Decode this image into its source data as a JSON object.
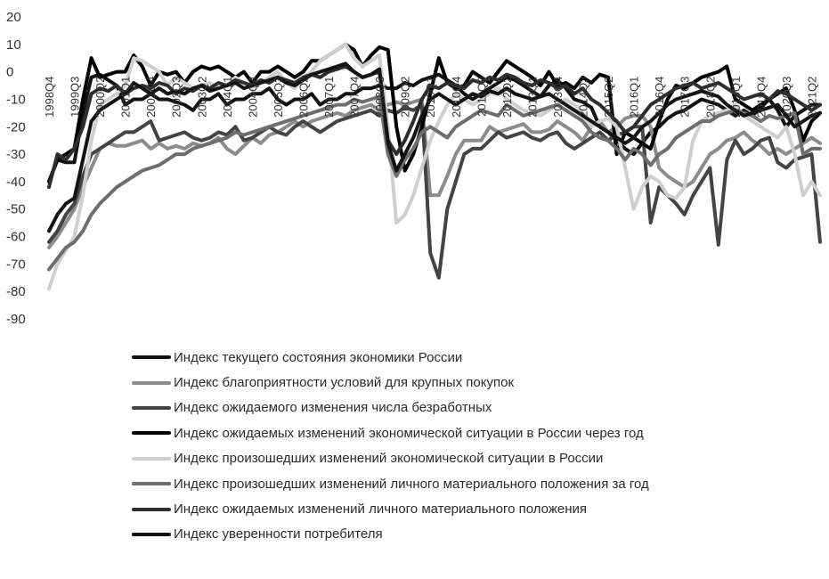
{
  "chart_data": {
    "type": "line",
    "ylim": [
      -90,
      20
    ],
    "yticks": [
      20,
      10,
      0,
      -10,
      -20,
      -30,
      -40,
      -50,
      -60,
      -70,
      -80,
      -90
    ],
    "x_start": "1998Q4",
    "x_end": "2021Q2",
    "x_tick_labels": [
      "1998Q4",
      "1999Q3",
      "2000Q2",
      "2001Q1",
      "2001Q4",
      "2002Q3",
      "2003Q2",
      "2004Q1",
      "2004Q4",
      "2005Q3",
      "2006Q2",
      "2007Q1",
      "2007Q4",
      "2008Q3",
      "2009Q2",
      "2010Q1",
      "2010Q4",
      "2011Q3",
      "2012Q2",
      "2013Q1",
      "2013Q4",
      "2014Q3",
      "2015Q2",
      "2016Q1",
      "2016Q4",
      "2017Q3",
      "2018Q2",
      "2019Q1",
      "2019Q4",
      "2020Q3",
      "2021Q2"
    ],
    "legend_position": "bottom",
    "grid": false,
    "series": [
      {
        "name": "Индекс текущего состояния экономики России",
        "color": "#111111",
        "values": [
          -40,
          -32,
          -33,
          -33,
          -15,
          -2,
          -1,
          -3,
          -5,
          -12,
          -10,
          -10,
          -8,
          -10,
          -10,
          -11,
          -12,
          -14,
          -10,
          -10,
          -8,
          -12,
          -10,
          -10,
          -8,
          -8,
          -6,
          -10,
          -12,
          -10,
          -10,
          -8,
          -12,
          -10,
          -10,
          -8,
          -8,
          -6,
          -6,
          -5,
          -6,
          -6,
          -4,
          -5,
          -3,
          -2,
          -1,
          -3,
          -5,
          -8,
          -10,
          -8,
          -6,
          -4,
          -2,
          -3,
          -5,
          -7,
          -9,
          -5,
          -3,
          -6,
          -10,
          -11,
          -13,
          -20,
          -22,
          -25,
          -28,
          -30,
          -26,
          -22,
          -20,
          -17,
          -15,
          -14,
          -12,
          -10,
          -11,
          -12,
          -14,
          -16,
          -14,
          -16,
          -13,
          -10,
          -14,
          -20,
          -16,
          -14,
          -12,
          -12
        ]
      },
      {
        "name": "Индекс благоприятности условий для крупных покупок",
        "color": "#8c8c8c",
        "values": [
          -64,
          -60,
          -55,
          -50,
          -42,
          -35,
          -28,
          -26,
          -27,
          -27,
          -26,
          -25,
          -28,
          -26,
          -28,
          -27,
          -28,
          -26,
          -27,
          -26,
          -24,
          -28,
          -30,
          -27,
          -24,
          -26,
          -23,
          -22,
          -20,
          -18,
          -20,
          -18,
          -17,
          -16,
          -15,
          -16,
          -14,
          -13,
          -12,
          -14,
          -12,
          -11,
          -12,
          -11,
          -10,
          -45,
          -45,
          -38,
          -30,
          -25,
          -25,
          -25,
          -20,
          -22,
          -21,
          -20,
          -19,
          -22,
          -22,
          -21,
          -18,
          -20,
          -22,
          -25,
          -20,
          -18,
          -22,
          -20,
          -17,
          -16,
          -16,
          -20,
          -35,
          -38,
          -40,
          -42,
          -40,
          -35,
          -30,
          -28,
          -25,
          -24,
          -22,
          -25,
          -27,
          -30,
          -28,
          -30,
          -28,
          -26,
          -24,
          -26
        ]
      },
      {
        "name": "Индекс ожидаемого изменения числа безработных",
        "color": "#444444",
        "values": [
          -62,
          -58,
          -52,
          -48,
          -38,
          -30,
          -28,
          -26,
          -24,
          -22,
          -22,
          -20,
          -18,
          -25,
          -24,
          -23,
          -22,
          -24,
          -25,
          -24,
          -22,
          -23,
          -20,
          -25,
          -24,
          -22,
          -20,
          -22,
          -23,
          -20,
          -18,
          -20,
          -22,
          -20,
          -18,
          -17,
          -16,
          -15,
          -14,
          -16,
          -14,
          -15,
          -13,
          -14,
          -12,
          -66,
          -75,
          -50,
          -40,
          -30,
          -28,
          -28,
          -25,
          -22,
          -24,
          -23,
          -22,
          -24,
          -25,
          -23,
          -22,
          -26,
          -28,
          -26,
          -24,
          -22,
          -25,
          -23,
          -22,
          -20,
          -20,
          -55,
          -42,
          -45,
          -48,
          -52,
          -45,
          -40,
          -35,
          -63,
          -32,
          -25,
          -30,
          -28,
          -25,
          -24,
          -33,
          -35,
          -32,
          -31,
          -30,
          -62
        ]
      },
      {
        "name": "Индекс ожидаемых изменений экономической ситуации в России через год",
        "color": "#000000",
        "values": [
          -40,
          -32,
          -30,
          -28,
          -10,
          5,
          -2,
          -1,
          0,
          0,
          6,
          2,
          -5,
          0,
          -1,
          0,
          -4,
          0,
          2,
          1,
          2,
          0,
          -2,
          0,
          -4,
          0,
          0,
          2,
          0,
          -2,
          0,
          4,
          4,
          6,
          8,
          10,
          8,
          2,
          6,
          9,
          8,
          -20,
          -36,
          -30,
          -20,
          -8,
          5,
          -4,
          -6,
          -5,
          0,
          -2,
          -4,
          0,
          4,
          2,
          0,
          -2,
          -5,
          0,
          -5,
          -4,
          -6,
          -2,
          -4,
          -1,
          -2,
          -30,
          -22,
          -24,
          -26,
          -28,
          -18,
          -10,
          -5,
          -6,
          -4,
          -2,
          -1,
          0,
          2,
          -10,
          -12,
          -14,
          -12,
          -10,
          -8,
          -6,
          -14,
          -25,
          -18,
          -15
        ]
      },
      {
        "name": "Индекс произошедших изменений экономической ситуации в России",
        "color": "#cfcfcf",
        "values": [
          -79,
          -70,
          -65,
          -60,
          -45,
          -25,
          -12,
          -10,
          -8,
          -5,
          5,
          4,
          2,
          0,
          -5,
          -2,
          -4,
          -6,
          -5,
          -4,
          -6,
          -5,
          -2,
          -4,
          -6,
          -4,
          -2,
          0,
          -4,
          -6,
          -2,
          0,
          4,
          6,
          8,
          10,
          5,
          2,
          4,
          6,
          -20,
          -55,
          -52,
          -45,
          -35,
          -25,
          -18,
          -12,
          -8,
          -10,
          -12,
          -10,
          -8,
          -6,
          -10,
          -12,
          -14,
          -15,
          -16,
          -14,
          -12,
          -10,
          -12,
          -15,
          -20,
          -18,
          -17,
          -20,
          -35,
          -50,
          -42,
          -38,
          -40,
          -45,
          -46,
          -42,
          -25,
          -18,
          -16,
          -15,
          -14,
          -12,
          -16,
          -18,
          -20,
          -22,
          -24,
          -20,
          -30,
          -45,
          -40,
          -45
        ]
      },
      {
        "name": "Индекс произошедших изменений личного материального положения за год",
        "color": "#6e6e6e",
        "values": [
          -72,
          -68,
          -64,
          -62,
          -58,
          -52,
          -48,
          -45,
          -42,
          -40,
          -38,
          -36,
          -35,
          -34,
          -32,
          -30,
          -30,
          -28,
          -27,
          -26,
          -25,
          -24,
          -22,
          -23,
          -22,
          -21,
          -20,
          -19,
          -18,
          -17,
          -16,
          -15,
          -14,
          -13,
          -12,
          -12,
          -10,
          -11,
          -10,
          -9,
          -30,
          -38,
          -32,
          -28,
          -22,
          -20,
          -22,
          -24,
          -20,
          -18,
          -16,
          -14,
          -15,
          -16,
          -12,
          -14,
          -16,
          -15,
          -14,
          -13,
          -12,
          -14,
          -16,
          -18,
          -22,
          -24,
          -25,
          -28,
          -32,
          -28,
          -30,
          -34,
          -30,
          -28,
          -24,
          -22,
          -20,
          -18,
          -18,
          -16,
          -15,
          -14,
          -15,
          -16,
          -18,
          -16,
          -17,
          -16,
          -15,
          -30,
          -28,
          -28
        ]
      },
      {
        "name": "Индекс ожидаемых изменений личного материального положения",
        "color": "#2e2e2e",
        "values": [
          -42,
          -30,
          -32,
          -28,
          -20,
          -8,
          -6,
          -7,
          -5,
          -8,
          -6,
          -5,
          -6,
          -4,
          -5,
          -8,
          -6,
          -7,
          -5,
          -6,
          -4,
          -5,
          -3,
          -4,
          -5,
          -3,
          -4,
          -2,
          -3,
          -4,
          -2,
          -1,
          -2,
          0,
          1,
          2,
          0,
          -2,
          -1,
          0,
          -25,
          -30,
          -25,
          -18,
          -10,
          -5,
          -6,
          -4,
          -5,
          -6,
          -3,
          -4,
          -2,
          -3,
          -1,
          -2,
          -4,
          -5,
          -3,
          -4,
          -6,
          -5,
          -8,
          -6,
          -10,
          -12,
          -15,
          -18,
          -22,
          -20,
          -16,
          -12,
          -10,
          -8,
          -6,
          -5,
          -4,
          -6,
          -5,
          -4,
          -6,
          -8,
          -10,
          -9,
          -8,
          -10,
          -7,
          -8,
          -10,
          -12,
          -14,
          -12
        ]
      },
      {
        "name": "Индекс уверенности потребителя",
        "color": "#141414",
        "values": [
          -58,
          -52,
          -48,
          -46,
          -32,
          -18,
          -14,
          -12,
          -10,
          -8,
          -4,
          -6,
          -8,
          -6,
          -8,
          -7,
          -8,
          -6,
          -5,
          -7,
          -6,
          -5,
          -4,
          -6,
          -5,
          -4,
          -3,
          -2,
          -4,
          -5,
          -3,
          -1,
          0,
          1,
          2,
          3,
          0,
          -2,
          -1,
          1,
          -26,
          -36,
          -30,
          -24,
          -16,
          -10,
          -8,
          -10,
          -12,
          -10,
          -8,
          -9,
          -7,
          -8,
          -6,
          -8,
          -9,
          -10,
          -9,
          -8,
          -10,
          -12,
          -14,
          -16,
          -18,
          -20,
          -22,
          -24,
          -26,
          -24,
          -20,
          -18,
          -15,
          -12,
          -10,
          -9,
          -8,
          -7,
          -8,
          -9,
          -12,
          -14,
          -16,
          -15,
          -14,
          -13,
          -12,
          -16,
          -20,
          -18,
          -16,
          -15
        ]
      }
    ]
  }
}
